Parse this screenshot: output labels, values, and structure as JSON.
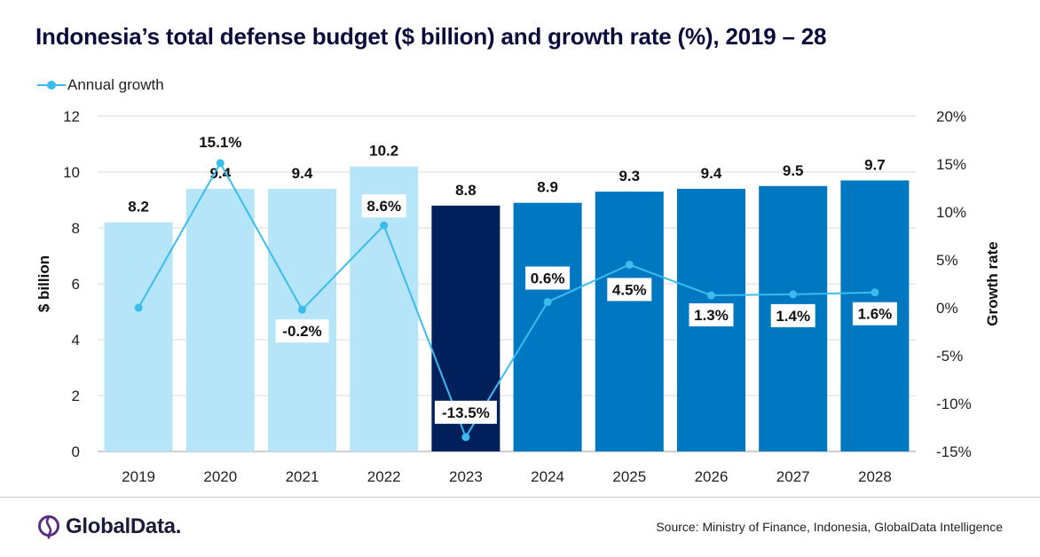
{
  "title": "Indonesia’s total defense budget ($ billion) and growth rate (%), 2019 – 28",
  "legend": {
    "label": "Annual growth",
    "color": "#3bbcef"
  },
  "source": "Source: Ministry of Finance, Indonesia, GlobalData Intelligence",
  "logo": {
    "text": "GlobalData.",
    "icon": "globaldata-logo-icon"
  },
  "colors": {
    "historic": "#b6e5fa",
    "current": "#00205b",
    "forecast": "#0078c1",
    "line": "#3bbcef"
  },
  "chart_data": {
    "type": "bar",
    "categories": [
      "2019",
      "2020",
      "2021",
      "2022",
      "2023",
      "2024",
      "2025",
      "2026",
      "2027",
      "2028"
    ],
    "series": [
      {
        "values": [
          8.2,
          9.4,
          9.4,
          10.2,
          8.8,
          8.9,
          9.3,
          9.4,
          9.5,
          9.7
        ],
        "labels": [
          "8.2",
          "9.4",
          "9.4",
          "10.2",
          "8.8",
          "8.9",
          "9.3",
          "9.4",
          "9.5",
          "9.7"
        ],
        "bar_groups": [
          "historic",
          "historic",
          "historic",
          "historic",
          "current",
          "forecast",
          "forecast",
          "forecast",
          "forecast",
          "forecast"
        ]
      },
      {
        "name": "Annual growth",
        "type": "line",
        "axis": "right",
        "values": [
          0,
          15.1,
          -0.2,
          8.6,
          -13.5,
          0.6,
          4.5,
          1.3,
          1.4,
          1.6
        ],
        "labels": [
          "",
          "15.1%",
          "-0.2%",
          "8.6%",
          "-13.5%",
          "0.6%",
          "4.5%",
          "1.3%",
          "1.4%",
          "1.6%"
        ]
      }
    ],
    "ylabel": "$ billion",
    "ylim": [
      0,
      12
    ],
    "yticks": [
      "0",
      "2",
      "4",
      "6",
      "8",
      "10",
      "12"
    ],
    "y2label": "Growth rate",
    "y2lim": [
      -15,
      20
    ],
    "y2ticks": [
      "-15%",
      "-10%",
      "-5%",
      "0%",
      "5%",
      "10%",
      "15%",
      "20%"
    ],
    "grid": true,
    "legend_position": "top-left"
  }
}
